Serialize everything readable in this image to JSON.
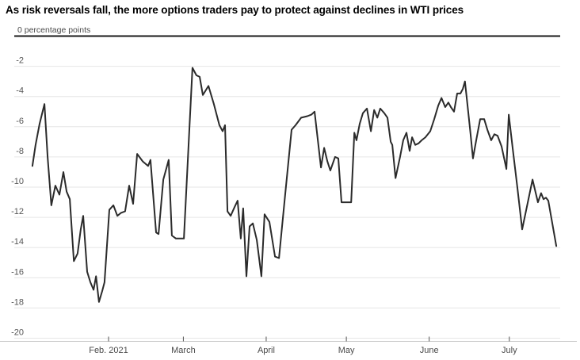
{
  "header": {
    "title": "As risk reversals fall, the more options traders pay to protect against declines in WTI prices"
  },
  "chart_data": {
    "type": "line",
    "title": "As risk reversals fall, the more options traders pay to protect against declines in WTI prices",
    "unit_label": "0 percentage points",
    "ylabel": "percentage points",
    "xlabel": "",
    "ylim": [
      -20,
      0
    ],
    "grid": true,
    "legend": "none",
    "y_ticks": [
      -2,
      -4,
      -6,
      -8,
      -10,
      -12,
      -14,
      -16,
      -18,
      -20
    ],
    "x_ticks": [
      {
        "label": "Feb. 2021",
        "doy": 32
      },
      {
        "label": "March",
        "doy": 60
      },
      {
        "label": "April",
        "doy": 91
      },
      {
        "label": "May",
        "doy": 121
      },
      {
        "label": "June",
        "doy": 152
      },
      {
        "label": "July",
        "doy": 182
      }
    ],
    "x_unit": "day_of_year_2021",
    "x_domain_doy": [
      3.5,
      199.9
    ],
    "line_color": "#2b2b2b",
    "grid_color": "#e6e6e6",
    "zero_line_color": "#1a1a1a",
    "axis_color": "#c9c9c9",
    "tick_color": "#555555",
    "label_color": "#4a4a4a",
    "points": [
      [
        3.5,
        -8.6
      ],
      [
        4.7,
        -7.2
      ],
      [
        6.2,
        -5.8
      ],
      [
        8.0,
        -4.5
      ],
      [
        9.2,
        -8.0
      ],
      [
        10.6,
        -11.2
      ],
      [
        12.1,
        -9.9
      ],
      [
        13.6,
        -10.5
      ],
      [
        15.1,
        -9.0
      ],
      [
        16.3,
        -10.3
      ],
      [
        17.5,
        -10.8
      ],
      [
        19.0,
        -14.9
      ],
      [
        20.4,
        -14.4
      ],
      [
        21.6,
        -12.8
      ],
      [
        22.5,
        -11.9
      ],
      [
        24.0,
        -15.6
      ],
      [
        25.2,
        -16.3
      ],
      [
        26.4,
        -16.8
      ],
      [
        27.3,
        -15.9
      ],
      [
        28.4,
        -17.6
      ],
      [
        29.6,
        -16.9
      ],
      [
        30.5,
        -16.3
      ],
      [
        32.3,
        -11.5
      ],
      [
        33.8,
        -11.2
      ],
      [
        35.3,
        -11.9
      ],
      [
        36.7,
        -11.7
      ],
      [
        38.2,
        -11.6
      ],
      [
        39.7,
        -9.9
      ],
      [
        41.2,
        -11.1
      ],
      [
        42.7,
        -7.8
      ],
      [
        44.8,
        -8.3
      ],
      [
        46.8,
        -8.6
      ],
      [
        47.7,
        -8.2
      ],
      [
        49.8,
        -13.0
      ],
      [
        50.7,
        -13.1
      ],
      [
        52.5,
        -9.5
      ],
      [
        54.5,
        -8.2
      ],
      [
        55.7,
        -13.2
      ],
      [
        57.2,
        -13.4
      ],
      [
        58.7,
        -13.4
      ],
      [
        60.2,
        -13.4
      ],
      [
        62.0,
        -7.0
      ],
      [
        63.4,
        -2.1
      ],
      [
        64.9,
        -2.6
      ],
      [
        66.1,
        -2.7
      ],
      [
        67.3,
        -3.9
      ],
      [
        69.4,
        -3.3
      ],
      [
        71.4,
        -4.5
      ],
      [
        73.5,
        -5.9
      ],
      [
        74.7,
        -6.3
      ],
      [
        75.6,
        -5.9
      ],
      [
        76.5,
        -11.6
      ],
      [
        77.7,
        -11.9
      ],
      [
        79.2,
        -11.3
      ],
      [
        80.3,
        -10.9
      ],
      [
        81.5,
        -13.4
      ],
      [
        82.4,
        -11.4
      ],
      [
        83.6,
        -15.9
      ],
      [
        84.8,
        -12.6
      ],
      [
        86.0,
        -12.4
      ],
      [
        87.5,
        -13.5
      ],
      [
        89.2,
        -15.9
      ],
      [
        90.4,
        -11.8
      ],
      [
        92.2,
        -12.3
      ],
      [
        94.3,
        -14.6
      ],
      [
        95.8,
        -14.7
      ],
      [
        98.1,
        -10.5
      ],
      [
        100.5,
        -6.2
      ],
      [
        102.0,
        -5.9
      ],
      [
        104.1,
        -5.4
      ],
      [
        106.4,
        -5.3
      ],
      [
        107.9,
        -5.2
      ],
      [
        109.1,
        -5.0
      ],
      [
        111.5,
        -8.7
      ],
      [
        112.7,
        -7.4
      ],
      [
        113.9,
        -8.3
      ],
      [
        115.0,
        -8.9
      ],
      [
        116.8,
        -8.0
      ],
      [
        118.0,
        -8.1
      ],
      [
        119.2,
        -11.0
      ],
      [
        121.0,
        -11.0
      ],
      [
        122.8,
        -11.0
      ],
      [
        124.0,
        -6.4
      ],
      [
        124.8,
        -6.9
      ],
      [
        126.0,
        -5.8
      ],
      [
        127.2,
        -5.1
      ],
      [
        128.7,
        -4.8
      ],
      [
        130.2,
        -6.3
      ],
      [
        131.4,
        -4.9
      ],
      [
        132.6,
        -5.4
      ],
      [
        133.7,
        -4.8
      ],
      [
        135.2,
        -5.1
      ],
      [
        136.4,
        -5.4
      ],
      [
        137.6,
        -7.0
      ],
      [
        138.2,
        -7.2
      ],
      [
        139.4,
        -9.4
      ],
      [
        141.1,
        -8.0
      ],
      [
        142.3,
        -6.9
      ],
      [
        143.5,
        -6.4
      ],
      [
        144.7,
        -7.6
      ],
      [
        145.6,
        -6.7
      ],
      [
        146.8,
        -7.2
      ],
      [
        148.0,
        -7.1
      ],
      [
        149.2,
        -6.9
      ],
      [
        150.6,
        -6.7
      ],
      [
        152.4,
        -6.3
      ],
      [
        153.9,
        -5.5
      ],
      [
        155.4,
        -4.6
      ],
      [
        156.6,
        -4.1
      ],
      [
        158.0,
        -4.7
      ],
      [
        159.2,
        -4.4
      ],
      [
        160.1,
        -4.7
      ],
      [
        161.3,
        -5.0
      ],
      [
        162.5,
        -3.8
      ],
      [
        163.7,
        -3.8
      ],
      [
        164.6,
        -3.5
      ],
      [
        165.4,
        -3.0
      ],
      [
        166.6,
        -5.0
      ],
      [
        167.5,
        -6.5
      ],
      [
        168.4,
        -8.1
      ],
      [
        169.6,
        -6.9
      ],
      [
        171.1,
        -5.5
      ],
      [
        172.6,
        -5.5
      ],
      [
        173.8,
        -6.2
      ],
      [
        175.2,
        -6.9
      ],
      [
        176.4,
        -6.5
      ],
      [
        177.6,
        -6.6
      ],
      [
        179.1,
        -7.3
      ],
      [
        180.3,
        -8.3
      ],
      [
        180.9,
        -8.8
      ],
      [
        181.8,
        -5.2
      ],
      [
        183.3,
        -7.5
      ],
      [
        185.0,
        -10.0
      ],
      [
        186.8,
        -12.8
      ],
      [
        190.7,
        -9.5
      ],
      [
        192.7,
        -11.0
      ],
      [
        193.9,
        -10.4
      ],
      [
        194.8,
        -10.8
      ],
      [
        195.7,
        -10.7
      ],
      [
        196.6,
        -10.9
      ],
      [
        199.6,
        -13.9
      ]
    ]
  }
}
